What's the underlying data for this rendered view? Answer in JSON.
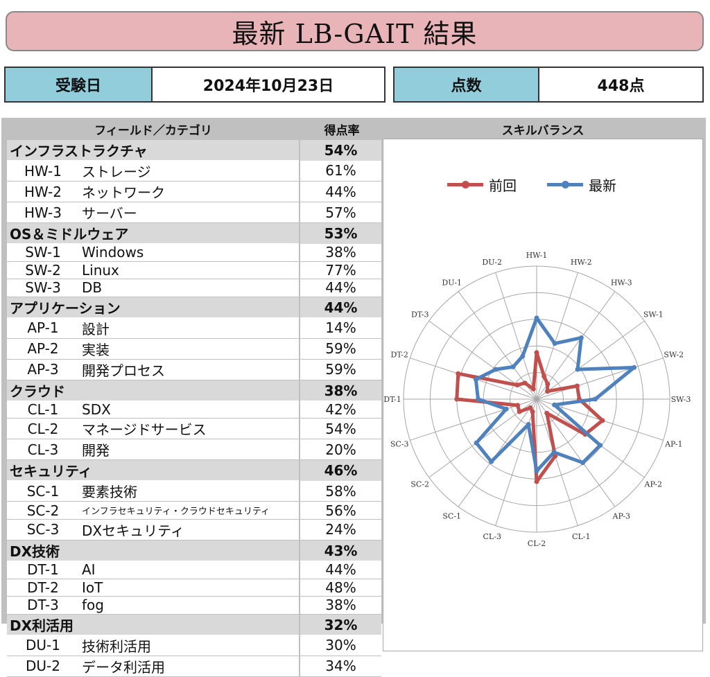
{
  "header": {
    "title": "最新 LB-GAIT 結果"
  },
  "exam_date": {
    "label": "受験日",
    "value": "2024年10月23日"
  },
  "score": {
    "label": "点数",
    "value": "448点"
  },
  "table": {
    "col_field": "フィールド／カテゴリ",
    "col_rate": "得点率",
    "groups": [
      {
        "name": "インフラストラクチャ",
        "pct": "54%",
        "items": [
          {
            "code": "HW-1",
            "name": "ストレージ",
            "pct": "61%"
          },
          {
            "code": "HW-2",
            "name": "ネットワーク",
            "pct": "44%"
          },
          {
            "code": "HW-3",
            "name": "サーバー",
            "pct": "57%"
          }
        ]
      },
      {
        "name": "OS＆ミドルウェア",
        "pct": "53%",
        "items": [
          {
            "code": "SW-1",
            "name": "Windows",
            "pct": "38%"
          },
          {
            "code": "SW-2",
            "name": "Linux",
            "pct": "77%"
          },
          {
            "code": "SW-3",
            "name": "DB",
            "pct": "44%"
          }
        ]
      },
      {
        "name": "アプリケーション",
        "pct": "44%",
        "items": [
          {
            "code": "AP-1",
            "name": "設計",
            "pct": "14%"
          },
          {
            "code": "AP-2",
            "name": "実装",
            "pct": "59%"
          },
          {
            "code": "AP-3",
            "name": "開発プロセス",
            "pct": "59%"
          }
        ]
      },
      {
        "name": "クラウド",
        "pct": "38%",
        "items": [
          {
            "code": "CL-1",
            "name": "SDX",
            "pct": "42%"
          },
          {
            "code": "CL-2",
            "name": "マネージドサービス",
            "pct": "54%"
          },
          {
            "code": "CL-3",
            "name": "開発",
            "pct": "20%"
          }
        ]
      },
      {
        "name": "セキュリティ",
        "pct": "46%",
        "items": [
          {
            "code": "SC-1",
            "name": "要素技術",
            "pct": "58%"
          },
          {
            "code": "SC-2",
            "name": "インフラセキュリティ・クラウドセキュリティ",
            "pct": "56%",
            "small": true
          },
          {
            "code": "SC-3",
            "name": "DXセキュリティ",
            "pct": "24%"
          }
        ]
      },
      {
        "name": "DX技術",
        "pct": "43%",
        "items": [
          {
            "code": "DT-1",
            "name": "AI",
            "pct": "44%"
          },
          {
            "code": "DT-2",
            "name": "IoT",
            "pct": "48%"
          },
          {
            "code": "DT-3",
            "name": "fog",
            "pct": "38%"
          }
        ]
      },
      {
        "name": "DX利活用",
        "pct": "32%",
        "items": [
          {
            "code": "DU-1",
            "name": "技術利活用",
            "pct": "30%"
          },
          {
            "code": "DU-2",
            "name": "データ利活用",
            "pct": "34%"
          }
        ]
      }
    ]
  },
  "chart_data": {
    "type": "radar",
    "title": "スキルバランス",
    "categories": [
      "HW-1",
      "HW-2",
      "HW-3",
      "SW-1",
      "SW-2",
      "SW-3",
      "AP-1",
      "AP-2",
      "AP-3",
      "CL-1",
      "CL-2",
      "CL-3",
      "SC-1",
      "SC-2",
      "SC-3",
      "DT-1",
      "DT-2",
      "DT-3",
      "DU-1",
      "DU-2"
    ],
    "rmax": 100,
    "rings": 5,
    "series": [
      {
        "name": "前回",
        "color": "#c0504d",
        "values": [
          35,
          18,
          14,
          10,
          32,
          32,
          52,
          45,
          13,
          45,
          62,
          10,
          8,
          16,
          15,
          60,
          62,
          18,
          15,
          8
        ]
      },
      {
        "name": "最新",
        "color": "#4f81bd",
        "values": [
          61,
          44,
          57,
          38,
          77,
          44,
          14,
          59,
          59,
          42,
          54,
          20,
          58,
          56,
          24,
          44,
          48,
          38,
          30,
          34
        ]
      }
    ],
    "legend_position": "top"
  }
}
